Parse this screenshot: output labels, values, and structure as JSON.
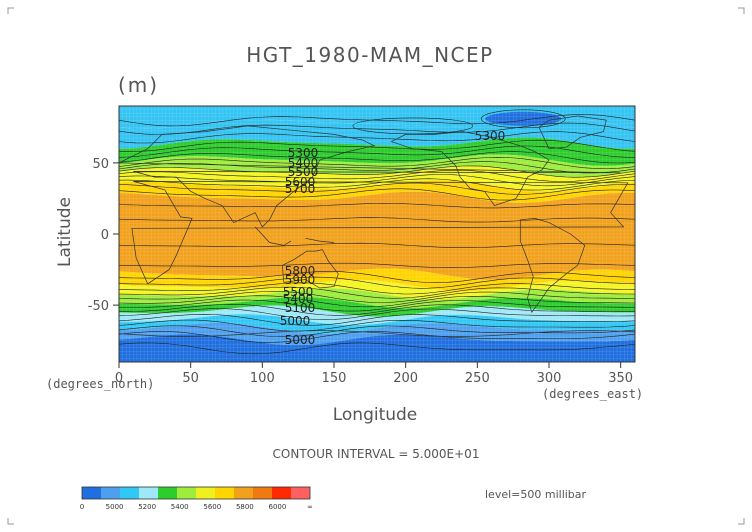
{
  "figure": {
    "title": "HGT_1980-MAM_NCEP",
    "units": "(m)",
    "xlabel": "Longitude",
    "ylabel": "Latitude",
    "xunit": "(degrees_east)",
    "yunit": "(degrees_north)",
    "contour_interval": "CONTOUR INTERVAL = 5.000E+01",
    "level": "level=500 millibar"
  },
  "chart_data": {
    "type": "heatmap",
    "title": "HGT_1980-MAM_NCEP",
    "xlabel": "Longitude",
    "ylabel": "Latitude",
    "xlim": [
      0,
      360
    ],
    "ylim": [
      -90,
      90
    ],
    "x_ticks": [
      "0",
      "50",
      "100",
      "150",
      "200",
      "250",
      "300",
      "350"
    ],
    "y_ticks": [
      "50",
      "0",
      "-50"
    ],
    "y_tick_values": [
      50,
      0,
      -50
    ],
    "x_tick_values": [
      0,
      50,
      100,
      150,
      200,
      250,
      300,
      350
    ],
    "contour_labels": [
      "5300",
      "5400",
      "5500",
      "5600",
      "5700",
      "5800",
      "5900",
      "5000",
      "5100",
      "5300"
    ],
    "colorbar": {
      "labels": [
        "0",
        "5000",
        "5200",
        "5400",
        "5600",
        "5800",
        "6000",
        "∞"
      ],
      "colors": [
        "#1f6fe0",
        "#4da0f0",
        "#32c8f5",
        "#9fe8f8",
        "#2ccd2c",
        "#9eed3c",
        "#f0f020",
        "#ffd400",
        "#f2a11c",
        "#f07a10",
        "#ff2a00",
        "#ff6060"
      ]
    },
    "bands": [
      {
        "lat_from": 90,
        "lat_to": 78,
        "color": "#34c4f3"
      },
      {
        "lat_from": 78,
        "lat_to": 64,
        "color": "#34c4f3"
      },
      {
        "lat_from": 64,
        "lat_to": 52,
        "color": "#2ccd2c"
      },
      {
        "lat_from": 52,
        "lat_to": 44,
        "color": "#9eed3c"
      },
      {
        "lat_from": 44,
        "lat_to": 34,
        "color": "#f5f522"
      },
      {
        "lat_from": 34,
        "lat_to": 26,
        "color": "#ffd400"
      },
      {
        "lat_from": 26,
        "lat_to": -28,
        "color": "#f2a11c"
      },
      {
        "lat_from": -28,
        "lat_to": -36,
        "color": "#ffd400"
      },
      {
        "lat_from": -36,
        "lat_to": -42,
        "color": "#f5f522"
      },
      {
        "lat_from": -42,
        "lat_to": -48,
        "color": "#9eed3c"
      },
      {
        "lat_from": -48,
        "lat_to": -54,
        "color": "#2ccd2c"
      },
      {
        "lat_from": -54,
        "lat_to": -60,
        "color": "#9fe8f8"
      },
      {
        "lat_from": -60,
        "lat_to": -66,
        "color": "#32c8f5"
      },
      {
        "lat_from": -66,
        "lat_to": -74,
        "color": "#4da0f0"
      },
      {
        "lat_from": -74,
        "lat_to": -90,
        "color": "#1f6fe0"
      }
    ]
  }
}
